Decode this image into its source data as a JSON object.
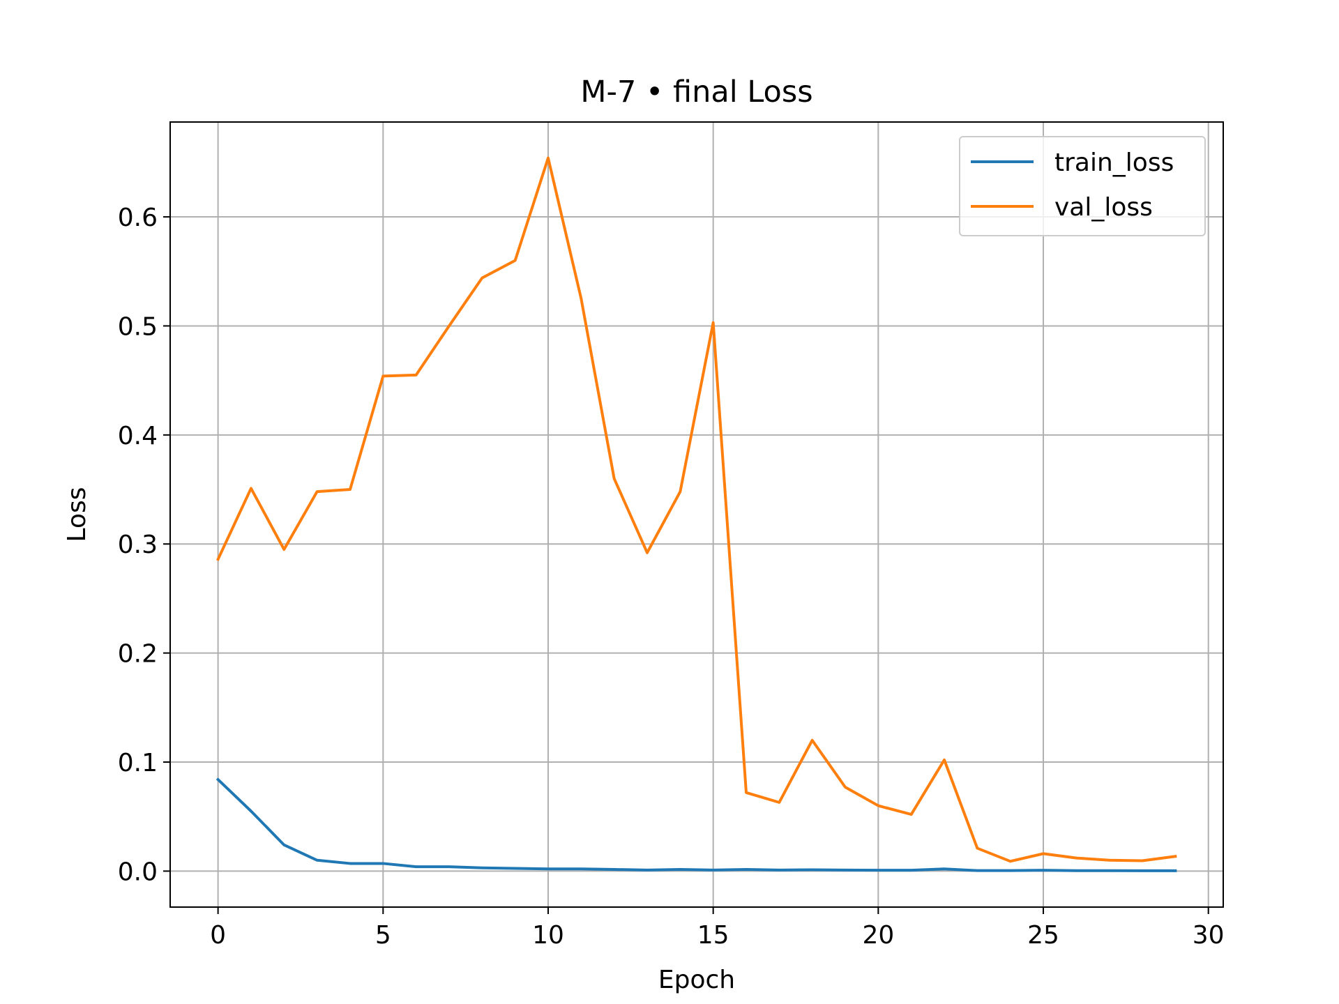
{
  "chart_data": {
    "type": "line",
    "title": "M-7 • final Loss",
    "xlabel": "Epoch",
    "ylabel": "Loss",
    "x": [
      0,
      1,
      2,
      3,
      4,
      5,
      6,
      7,
      8,
      9,
      10,
      11,
      12,
      13,
      14,
      15,
      16,
      17,
      18,
      19,
      20,
      21,
      22,
      23,
      24,
      25,
      26,
      27,
      28,
      29
    ],
    "series": [
      {
        "name": "train_loss",
        "color": "#1f77b4",
        "values": [
          0.084,
          0.055,
          0.024,
          0.01,
          0.007,
          0.007,
          0.004,
          0.004,
          0.003,
          0.0025,
          0.002,
          0.002,
          0.0015,
          0.001,
          0.0015,
          0.001,
          0.0015,
          0.001,
          0.0012,
          0.001,
          0.0008,
          0.0008,
          0.002,
          0.0005,
          0.0005,
          0.0008,
          0.0004,
          0.0004,
          0.0003,
          0.0003
        ]
      },
      {
        "name": "val_loss",
        "color": "#ff7f0e",
        "values": [
          0.286,
          0.351,
          0.295,
          0.348,
          0.35,
          0.454,
          0.455,
          0.5,
          0.544,
          0.56,
          0.654,
          0.525,
          0.36,
          0.292,
          0.348,
          0.503,
          0.072,
          0.063,
          0.12,
          0.077,
          0.06,
          0.052,
          0.102,
          0.021,
          0.009,
          0.016,
          0.012,
          0.01,
          0.0095,
          0.0135
        ]
      }
    ],
    "x_ticks": [
      "0",
      "5",
      "10",
      "15",
      "20",
      "25",
      "30"
    ],
    "y_ticks": [
      "0.0",
      "0.1",
      "0.2",
      "0.3",
      "0.4",
      "0.5",
      "0.6"
    ],
    "xlim": [
      -1.45,
      30.45
    ],
    "ylim": [
      -0.033,
      0.687
    ],
    "grid": true,
    "legend_position": "upper right"
  }
}
